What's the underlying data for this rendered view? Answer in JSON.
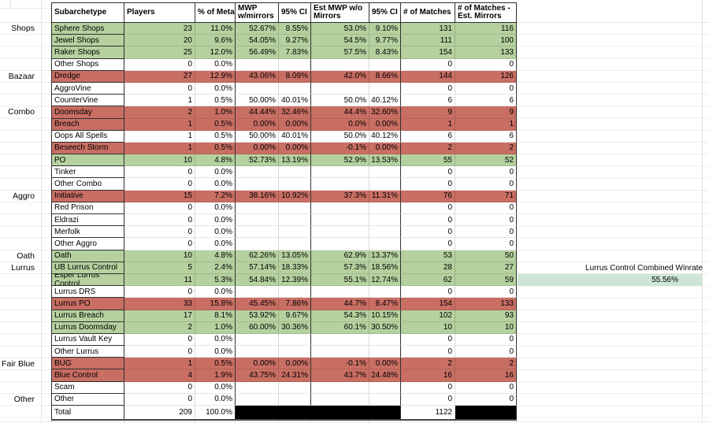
{
  "colors": {
    "row_green": "#b5d19f",
    "row_red": "#c96e63",
    "highlight_teal": "#cde5d4",
    "blackout": "#000000"
  },
  "annotation": {
    "label": "Lurrus Control Combined Winrate",
    "value": "55.56%"
  },
  "table": {
    "headers": [
      "Subarchetype",
      "Players",
      "% of Meta",
      "MWP w/mirrors",
      "95% CI",
      "Est MWP w/o Mirrors",
      "95% CI",
      "# of Matches",
      "# of Matches - Est. Mirrors"
    ],
    "categories": [
      {
        "label": "Shops",
        "row": 0
      },
      {
        "label": "Bazaar",
        "row": 4
      },
      {
        "label": "Combo",
        "row": 7
      },
      {
        "label": "Aggro",
        "row": 14
      },
      {
        "label": "Oath",
        "row": 19
      },
      {
        "label": "Lurrus",
        "row": 20
      },
      {
        "label": "Fair Blue",
        "row": 28
      },
      {
        "label": "Other",
        "row": 31
      }
    ],
    "rows": [
      {
        "name": "Sphere Shops",
        "color": "green",
        "players": "23",
        "meta": "11.0%",
        "mwp": "52.67%",
        "ci1": "8.55%",
        "est": "53.0%",
        "ci2": "9.10%",
        "matches": "131",
        "matches_est": "116"
      },
      {
        "name": "Jewel Shops",
        "color": "green",
        "players": "20",
        "meta": "9.6%",
        "mwp": "54.05%",
        "ci1": "9.27%",
        "est": "54.5%",
        "ci2": "9.77%",
        "matches": "111",
        "matches_est": "100"
      },
      {
        "name": "Raker Shops",
        "color": "green",
        "players": "25",
        "meta": "12.0%",
        "mwp": "56.49%",
        "ci1": "7.83%",
        "est": "57.5%",
        "ci2": "8.43%",
        "matches": "154",
        "matches_est": "133"
      },
      {
        "name": "Other Shops",
        "color": "white",
        "players": "0",
        "meta": "0.0%",
        "mwp": "",
        "ci1": "",
        "est": "",
        "ci2": "",
        "matches": "0",
        "matches_est": "0"
      },
      {
        "name": "Dredge",
        "color": "red",
        "players": "27",
        "meta": "12.9%",
        "mwp": "43.06%",
        "ci1": "8.09%",
        "est": "42.0%",
        "ci2": "8.66%",
        "matches": "144",
        "matches_est": "126"
      },
      {
        "name": "AggroVine",
        "color": "white",
        "players": "0",
        "meta": "0.0%",
        "mwp": "",
        "ci1": "",
        "est": "",
        "ci2": "",
        "matches": "0",
        "matches_est": "0"
      },
      {
        "name": "CounterVine",
        "color": "white",
        "players": "1",
        "meta": "0.5%",
        "mwp": "50.00%",
        "ci1": "40.01%",
        "est": "50.0%",
        "ci2": "40.12%",
        "matches": "6",
        "matches_est": "6"
      },
      {
        "name": "Doomsday",
        "color": "red",
        "players": "2",
        "meta": "1.0%",
        "mwp": "44.44%",
        "ci1": "32.46%",
        "est": "44.4%",
        "ci2": "32.60%",
        "matches": "9",
        "matches_est": "9"
      },
      {
        "name": "Breach",
        "color": "red",
        "players": "1",
        "meta": "0.5%",
        "mwp": "0.00%",
        "ci1": "0.00%",
        "est": "0.0%",
        "ci2": "0.00%",
        "matches": "1",
        "matches_est": "1"
      },
      {
        "name": "Oops All Spells",
        "color": "white",
        "players": "1",
        "meta": "0.5%",
        "mwp": "50.00%",
        "ci1": "40.01%",
        "est": "50.0%",
        "ci2": "40.12%",
        "matches": "6",
        "matches_est": "6"
      },
      {
        "name": "Beseech Storm",
        "color": "red",
        "players": "1",
        "meta": "0.5%",
        "mwp": "0.00%",
        "ci1": "0.00%",
        "est": "-0.1%",
        "ci2": "0.00%",
        "matches": "2",
        "matches_est": "2"
      },
      {
        "name": "PO",
        "color": "green",
        "players": "10",
        "meta": "4.8%",
        "mwp": "52.73%",
        "ci1": "13.19%",
        "est": "52.9%",
        "ci2": "13.53%",
        "matches": "55",
        "matches_est": "52"
      },
      {
        "name": "Tinker",
        "color": "white",
        "players": "0",
        "meta": "0.0%",
        "mwp": "",
        "ci1": "",
        "est": "",
        "ci2": "",
        "matches": "0",
        "matches_est": "0"
      },
      {
        "name": "Other Combo",
        "color": "white",
        "players": "0",
        "meta": "0.0%",
        "mwp": "",
        "ci1": "",
        "est": "",
        "ci2": "",
        "matches": "0",
        "matches_est": "0"
      },
      {
        "name": "Initiative",
        "color": "red",
        "players": "15",
        "meta": "7.2%",
        "mwp": "38.16%",
        "ci1": "10.92%",
        "est": "37.3%",
        "ci2": "11.31%",
        "matches": "76",
        "matches_est": "71"
      },
      {
        "name": "Red Prison",
        "color": "white",
        "players": "0",
        "meta": "0.0%",
        "mwp": "",
        "ci1": "",
        "est": "",
        "ci2": "",
        "matches": "0",
        "matches_est": "0"
      },
      {
        "name": "Eldrazi",
        "color": "white",
        "players": "0",
        "meta": "0.0%",
        "mwp": "",
        "ci1": "",
        "est": "",
        "ci2": "",
        "matches": "0",
        "matches_est": "0"
      },
      {
        "name": "Merfolk",
        "color": "white",
        "players": "0",
        "meta": "0.0%",
        "mwp": "",
        "ci1": "",
        "est": "",
        "ci2": "",
        "matches": "0",
        "matches_est": "0"
      },
      {
        "name": "Other Aggro",
        "color": "white",
        "players": "0",
        "meta": "0.0%",
        "mwp": "",
        "ci1": "",
        "est": "",
        "ci2": "",
        "matches": "0",
        "matches_est": "0"
      },
      {
        "name": "Oath",
        "color": "green",
        "players": "10",
        "meta": "4.8%",
        "mwp": "62.26%",
        "ci1": "13.05%",
        "est": "62.9%",
        "ci2": "13.37%",
        "matches": "53",
        "matches_est": "50"
      },
      {
        "name": "UB Lurrus Control",
        "color": "green",
        "players": "5",
        "meta": "2.4%",
        "mwp": "57.14%",
        "ci1": "18.33%",
        "est": "57.3%",
        "ci2": "18.56%",
        "matches": "28",
        "matches_est": "27"
      },
      {
        "name": "Esper Lurrus Control",
        "color": "green",
        "players": "11",
        "meta": "5.3%",
        "mwp": "54.84%",
        "ci1": "12.39%",
        "est": "55.1%",
        "ci2": "12.74%",
        "matches": "62",
        "matches_est": "59"
      },
      {
        "name": "Lurrus DRS",
        "color": "white",
        "players": "0",
        "meta": "0.0%",
        "mwp": "",
        "ci1": "",
        "est": "",
        "ci2": "",
        "matches": "0",
        "matches_est": "0"
      },
      {
        "name": "Lurrus PO",
        "color": "red",
        "players": "33",
        "meta": "15.8%",
        "mwp": "45.45%",
        "ci1": "7.86%",
        "est": "44.7%",
        "ci2": "8.47%",
        "matches": "154",
        "matches_est": "133"
      },
      {
        "name": "Lurrus Breach",
        "color": "green",
        "players": "17",
        "meta": "8.1%",
        "mwp": "53.92%",
        "ci1": "9.67%",
        "est": "54.3%",
        "ci2": "10.15%",
        "matches": "102",
        "matches_est": "93"
      },
      {
        "name": "Lurrus Doomsday",
        "color": "green",
        "players": "2",
        "meta": "1.0%",
        "mwp": "60.00%",
        "ci1": "30.36%",
        "est": "60.1%",
        "ci2": "30.50%",
        "matches": "10",
        "matches_est": "10"
      },
      {
        "name": "Lurrus Vault Key",
        "color": "white",
        "players": "0",
        "meta": "0.0%",
        "mwp": "",
        "ci1": "",
        "est": "",
        "ci2": "",
        "matches": "0",
        "matches_est": "0"
      },
      {
        "name": "Other Lurrus",
        "color": "white",
        "players": "0",
        "meta": "0.0%",
        "mwp": "",
        "ci1": "",
        "est": "",
        "ci2": "",
        "matches": "0",
        "matches_est": "0"
      },
      {
        "name": "BUG",
        "color": "red",
        "players": "1",
        "meta": "0.5%",
        "mwp": "0.00%",
        "ci1": "0.00%",
        "est": "-0.1%",
        "ci2": "0.00%",
        "matches": "2",
        "matches_est": "2"
      },
      {
        "name": "Blue Control",
        "color": "red",
        "players": "4",
        "meta": "1.9%",
        "mwp": "43.75%",
        "ci1": "24.31%",
        "est": "43.7%",
        "ci2": "24.48%",
        "matches": "16",
        "matches_est": "16"
      },
      {
        "name": "Scam",
        "color": "white",
        "players": "0",
        "meta": "0.0%",
        "mwp": "",
        "ci1": "",
        "est": "",
        "ci2": "",
        "matches": "0",
        "matches_est": "0"
      },
      {
        "name": "Other",
        "color": "white",
        "players": "0",
        "meta": "0.0%",
        "mwp": "",
        "ci1": "",
        "est": "",
        "ci2": "",
        "matches": "0",
        "matches_est": "0"
      }
    ],
    "total": {
      "name": "Total",
      "players": "209",
      "meta": "100.0%",
      "matches": "1122"
    }
  }
}
